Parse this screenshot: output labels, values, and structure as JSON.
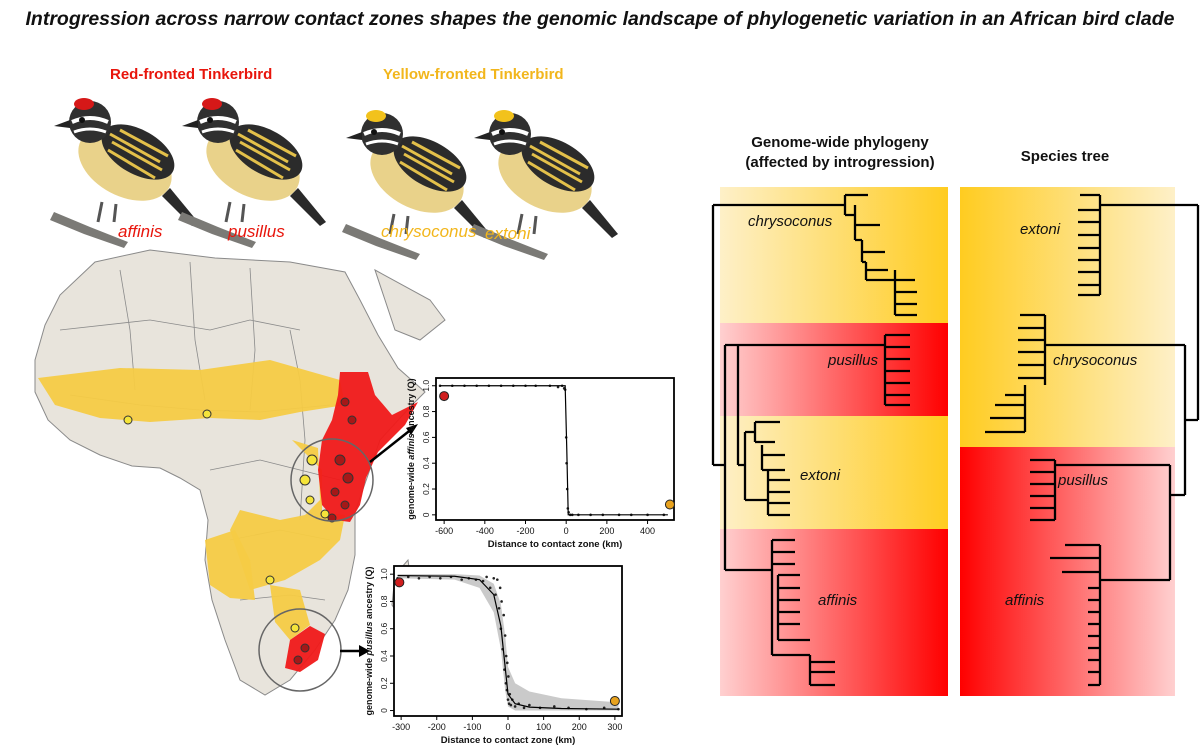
{
  "title": "Introgression across narrow contact zones shapes the genomic landscape of phylogenetic variation in an African bird clade",
  "colors": {
    "red": "#f01919",
    "yellow": "#f5cb45",
    "taxon_red": "#e8150c",
    "taxon_yellow": "#f2b61c",
    "land": "#e8e4dc"
  },
  "groups": [
    {
      "name": "Red-fronted Tinkerbird",
      "taxa": [
        "affinis",
        "pusillus"
      ]
    },
    {
      "name": "Yellow-fronted Tinkerbird",
      "taxa": [
        "chrysoconus",
        "extoni"
      ]
    }
  ],
  "trees": {
    "left_header": "Genome-wide phylogeny\n(affected by introgression)",
    "right_header": "Species tree",
    "left_clades": [
      "chrysoconus",
      "pusillus",
      "extoni",
      "affinis"
    ],
    "right_clades": [
      "extoni",
      "chrysoconus",
      "pusillus",
      "affinis"
    ]
  },
  "chart_data": [
    {
      "type": "scatter",
      "xlabel": "Distance to contact zone (km)",
      "ylabel_prefix": "genome-wide ",
      "ylabel_taxon": "affinis",
      "ylabel_suffix": " ancestry (Q)",
      "xticks": [
        -600,
        -400,
        -200,
        0,
        200,
        400
      ],
      "yticks": [
        0,
        0.2,
        0.4,
        0.6,
        0.8,
        1.0
      ],
      "xlim": [
        -640,
        530
      ],
      "ylim": [
        -0.04,
        1.06
      ],
      "end_markers": [
        {
          "x": -600,
          "y": 0.92,
          "color": "#d01e1e"
        },
        {
          "x": 510,
          "y": 0.08,
          "color": "#e8a21e"
        }
      ],
      "points": [
        [
          -620,
          1.0
        ],
        [
          -560,
          1.0
        ],
        [
          -500,
          1.0
        ],
        [
          -440,
          1.0
        ],
        [
          -380,
          1.0
        ],
        [
          -320,
          1.0
        ],
        [
          -260,
          1.0
        ],
        [
          -200,
          1.0
        ],
        [
          -150,
          1.0
        ],
        [
          -80,
          1.0
        ],
        [
          -40,
          0.99
        ],
        [
          -20,
          1.0
        ],
        [
          -10,
          0.98
        ],
        [
          -5,
          0.97
        ],
        [
          0,
          0.6
        ],
        [
          2,
          0.4
        ],
        [
          5,
          0.2
        ],
        [
          8,
          0.05
        ],
        [
          12,
          0.02
        ],
        [
          20,
          0.0
        ],
        [
          30,
          0.0
        ],
        [
          60,
          0.0
        ],
        [
          120,
          0.0
        ],
        [
          180,
          0.0
        ],
        [
          260,
          0.0
        ],
        [
          320,
          0.0
        ],
        [
          400,
          0.0
        ],
        [
          480,
          0.0
        ]
      ],
      "fit": [
        [
          -620,
          1.0
        ],
        [
          -5,
          1.0
        ],
        [
          3,
          0.5
        ],
        [
          10,
          0.0
        ],
        [
          500,
          0.0
        ]
      ]
    },
    {
      "type": "scatter",
      "xlabel": "Distance to contact zone (km)",
      "ylabel_prefix": "genome-wide ",
      "ylabel_taxon": "pusillus",
      "ylabel_suffix": " ancestry (Q)",
      "xticks": [
        -300,
        -200,
        -100,
        0,
        100,
        200,
        300
      ],
      "yticks": [
        0,
        0.2,
        0.4,
        0.6,
        0.8,
        1.0
      ],
      "xlim": [
        -320,
        320
      ],
      "ylim": [
        -0.04,
        1.06
      ],
      "end_markers": [
        {
          "x": -305,
          "y": 0.94,
          "color": "#d01e1e"
        },
        {
          "x": 300,
          "y": 0.07,
          "color": "#e8a21e"
        }
      ],
      "points": [
        [
          -310,
          0.97
        ],
        [
          -280,
          0.98
        ],
        [
          -250,
          0.97
        ],
        [
          -220,
          0.98
        ],
        [
          -190,
          0.97
        ],
        [
          -160,
          0.98
        ],
        [
          -130,
          0.96
        ],
        [
          -110,
          0.97
        ],
        [
          -90,
          0.96
        ],
        [
          -70,
          0.95
        ],
        [
          -60,
          0.98
        ],
        [
          -50,
          0.9
        ],
        [
          -40,
          0.97
        ],
        [
          -35,
          0.85
        ],
        [
          -30,
          0.96
        ],
        [
          -25,
          0.75
        ],
        [
          -22,
          0.9
        ],
        [
          -20,
          0.6
        ],
        [
          -18,
          0.8
        ],
        [
          -15,
          0.45
        ],
        [
          -12,
          0.7
        ],
        [
          -10,
          0.3
        ],
        [
          -8,
          0.55
        ],
        [
          -6,
          0.2
        ],
        [
          -5,
          0.4
        ],
        [
          -3,
          0.15
        ],
        [
          -2,
          0.35
        ],
        [
          0,
          0.08
        ],
        [
          1,
          0.25
        ],
        [
          3,
          0.05
        ],
        [
          5,
          0.12
        ],
        [
          8,
          0.04
        ],
        [
          12,
          0.08
        ],
        [
          20,
          0.03
        ],
        [
          30,
          0.05
        ],
        [
          45,
          0.02
        ],
        [
          60,
          0.04
        ],
        [
          90,
          0.02
        ],
        [
          130,
          0.03
        ],
        [
          170,
          0.02
        ],
        [
          220,
          0.01
        ],
        [
          270,
          0.02
        ],
        [
          310,
          0.01
        ]
      ],
      "fit": [
        [
          -310,
          0.99
        ],
        [
          -150,
          0.985
        ],
        [
          -80,
          0.96
        ],
        [
          -40,
          0.85
        ],
        [
          -20,
          0.62
        ],
        [
          -8,
          0.32
        ],
        [
          0,
          0.12
        ],
        [
          20,
          0.05
        ],
        [
          60,
          0.025
        ],
        [
          150,
          0.015
        ],
        [
          310,
          0.01
        ]
      ],
      "band_upper": [
        [
          -310,
          1.0
        ],
        [
          -150,
          1.0
        ],
        [
          -80,
          0.99
        ],
        [
          -40,
          0.93
        ],
        [
          -20,
          0.78
        ],
        [
          -8,
          0.55
        ],
        [
          0,
          0.32
        ],
        [
          20,
          0.2
        ],
        [
          60,
          0.14
        ],
        [
          150,
          0.09
        ],
        [
          310,
          0.06
        ]
      ],
      "band_lower": [
        [
          -310,
          0.97
        ],
        [
          -150,
          0.96
        ],
        [
          -80,
          0.9
        ],
        [
          -40,
          0.72
        ],
        [
          -20,
          0.45
        ],
        [
          -8,
          0.15
        ],
        [
          0,
          0.03
        ],
        [
          20,
          0.0
        ],
        [
          60,
          0.0
        ],
        [
          150,
          0.0
        ],
        [
          310,
          0.0
        ]
      ]
    }
  ]
}
